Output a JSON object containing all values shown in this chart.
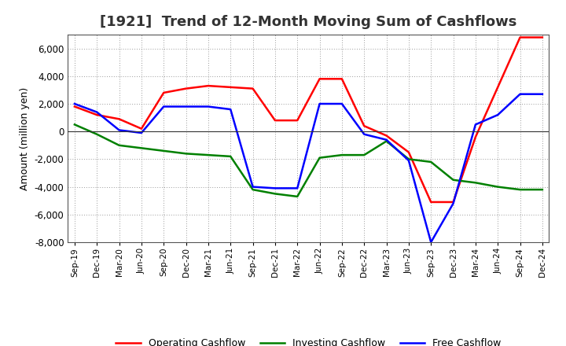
{
  "title": "[1921]  Trend of 12-Month Moving Sum of Cashflows",
  "ylabel": "Amount (million yen)",
  "xlim_labels": [
    "Sep-19",
    "Dec-19",
    "Mar-20",
    "Jun-20",
    "Sep-20",
    "Dec-20",
    "Mar-21",
    "Jun-21",
    "Sep-21",
    "Dec-21",
    "Mar-22",
    "Jun-22",
    "Sep-22",
    "Dec-22",
    "Mar-23",
    "Jun-23",
    "Sep-23",
    "Dec-23",
    "Mar-24",
    "Jun-24",
    "Sep-24",
    "Dec-24"
  ],
  "operating_cashflow": [
    1800,
    1200,
    900,
    200,
    2800,
    3100,
    3300,
    3200,
    3100,
    800,
    800,
    3800,
    3800,
    400,
    -300,
    -1500,
    -5100,
    -5100,
    -400,
    3200,
    6800,
    6800
  ],
  "investing_cashflow": [
    500,
    -200,
    -1000,
    -1200,
    -1400,
    -1600,
    -1700,
    -1800,
    -4200,
    -4500,
    -4700,
    -1900,
    -1700,
    -1700,
    -700,
    -2000,
    -2200,
    -3500,
    -3700,
    -4000,
    -4200,
    -4200
  ],
  "free_cashflow": [
    2000,
    1400,
    100,
    -100,
    1800,
    1800,
    1800,
    1600,
    -4000,
    -4100,
    -4100,
    2000,
    2000,
    -200,
    -600,
    -2100,
    -8000,
    -5200,
    500,
    1200,
    2700,
    2700
  ],
  "operating_color": "#ff0000",
  "investing_color": "#008000",
  "free_color": "#0000ff",
  "ylim": [
    -8000,
    7000
  ],
  "yticks": [
    -8000,
    -6000,
    -4000,
    -2000,
    0,
    2000,
    4000,
    6000
  ],
  "background_color": "#ffffff",
  "grid_color": "#999999",
  "line_width": 1.8,
  "title_fontsize": 13,
  "title_color": "#333333",
  "legend_labels": [
    "Operating Cashflow",
    "Investing Cashflow",
    "Free Cashflow"
  ]
}
